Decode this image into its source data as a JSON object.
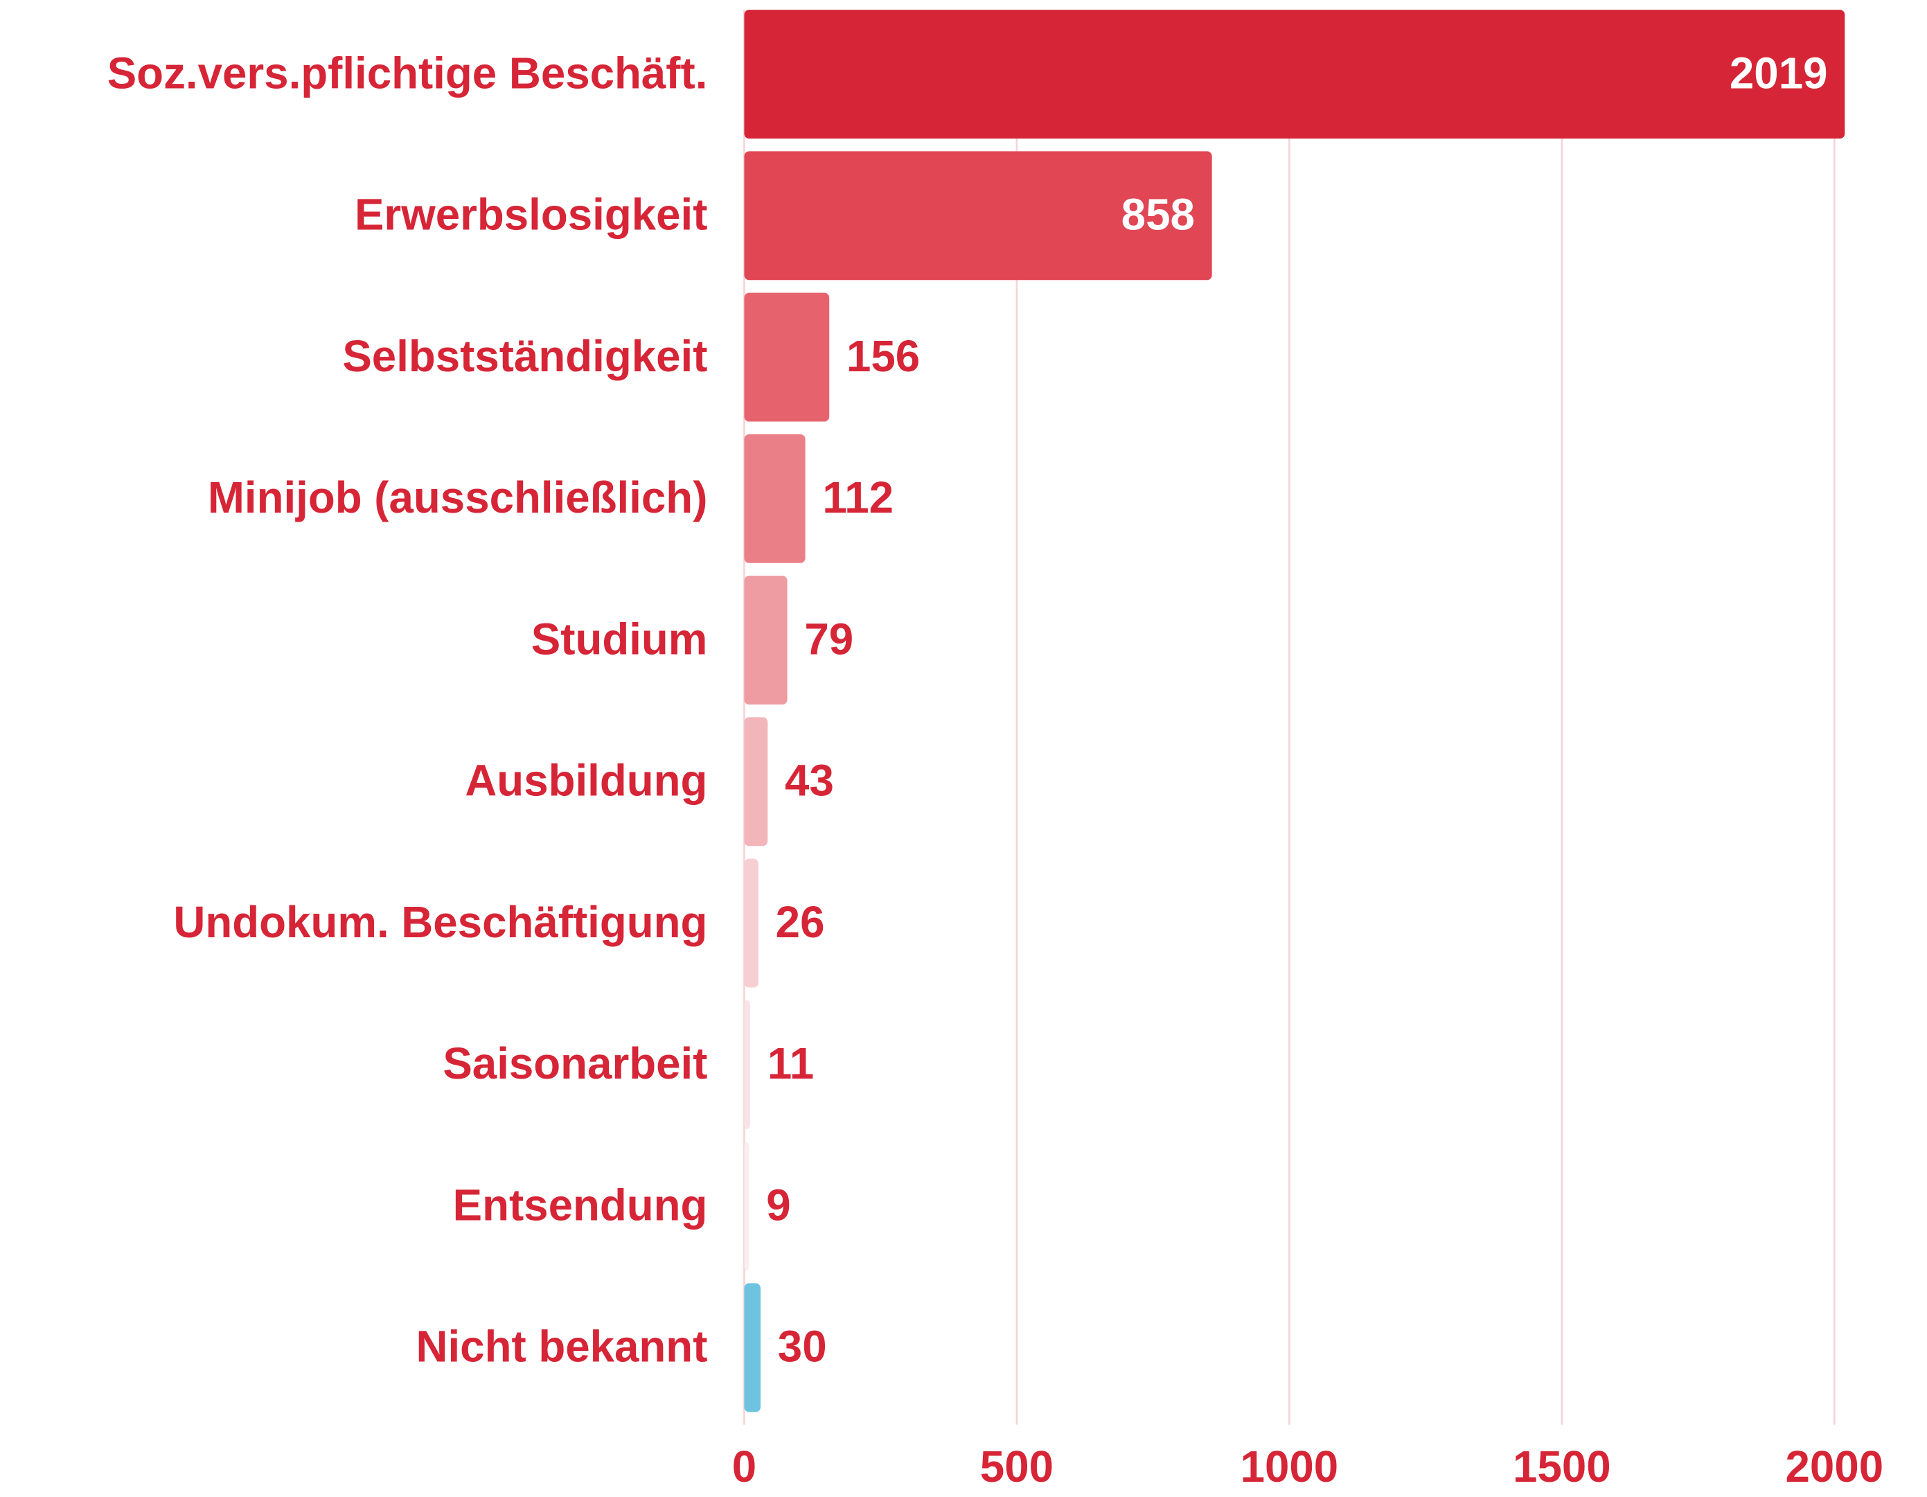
{
  "chart_data": {
    "type": "barh",
    "categories": [
      "Soz.vers.pflichtige Beschäft.",
      "Erwerbslosigkeit",
      "Selbstständigkeit",
      "Minijob (ausschließlich)",
      "Studium",
      "Ausbildung",
      "Undokum. Beschäftigung",
      "Saisonarbeit",
      "Entsendung",
      "Nicht bekannt"
    ],
    "values": [
      2019,
      858,
      156,
      112,
      79,
      43,
      26,
      11,
      9,
      30
    ],
    "colors": [
      "#d62536",
      "#e04654",
      "#e6636e",
      "#ea7f88",
      "#ee9ba2",
      "#f2b5ba",
      "#f5cfd2",
      "#f8e4e6",
      "#fbeef0",
      "#6ec3e0"
    ],
    "xlim": [
      0,
      2000
    ],
    "xticks": [
      0,
      500,
      1000,
      1500,
      2000
    ],
    "grid": true
  }
}
